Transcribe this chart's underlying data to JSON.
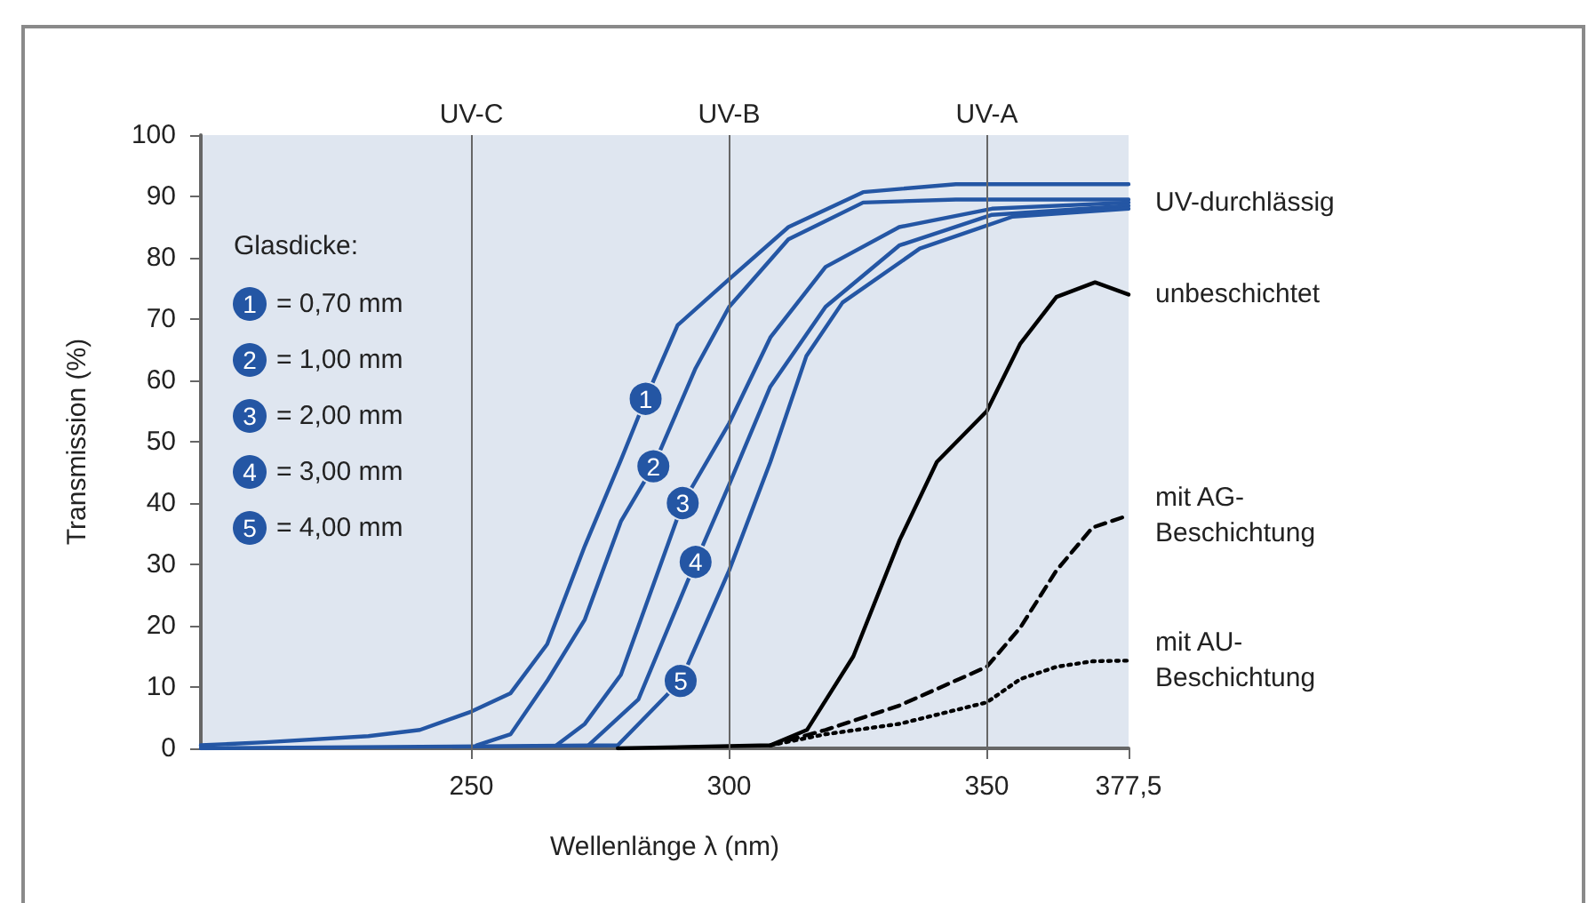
{
  "chart_data": {
    "type": "line",
    "xlabel": "Wellenlänge λ (nm)",
    "ylabel": "Transmission (%)",
    "legend_title": "Glasdicke:",
    "legend": "top left",
    "grid": false,
    "marker": "none",
    "xlim": [
      197.5,
      377.5
    ],
    "xticks": [
      250,
      300,
      350,
      {
        "value": 377.5,
        "label": "377,5"
      }
    ],
    "ylim": [
      0,
      100
    ],
    "yticks": [
      0,
      10,
      20,
      30,
      40,
      50,
      60,
      70,
      80,
      90,
      100
    ],
    "ref_lines": [
      {
        "axis": "x",
        "value": 250,
        "label": "UV-C",
        "color": "#666666"
      },
      {
        "axis": "x",
        "value": 300,
        "label": "UV-B",
        "color": "#666666"
      },
      {
        "axis": "x",
        "value": 350,
        "label": "UV-A",
        "color": "#666666"
      }
    ],
    "series": [
      {
        "name": "= 0,70 mm",
        "color": "#2456a4",
        "line_style": "solid",
        "x": [
          197.5,
          210,
          230,
          240,
          250,
          257.6,
          264.7,
          272,
          279,
          283.8,
          290,
          300,
          311.5,
          326,
          344,
          377.5
        ],
        "values": [
          0.5,
          1,
          2,
          3,
          6,
          9,
          17,
          33,
          47,
          57,
          69,
          76.5,
          85,
          90.7,
          92,
          92
        ]
      },
      {
        "name": "= 1,00 mm",
        "color": "#2456a4",
        "line_style": "solid",
        "x": [
          251,
          257.6,
          264.7,
          272,
          279,
          285.3,
          293.5,
          300,
          311.5,
          326,
          344,
          377.5
        ],
        "values": [
          0.5,
          2.3,
          11,
          21,
          37,
          46,
          62,
          72,
          83,
          89,
          89.5,
          89.5
        ]
      },
      {
        "name": "= 2,00 mm",
        "color": "#2456a4",
        "line_style": "solid",
        "x": [
          266.5,
          272,
          279,
          291,
          300,
          308,
          318.7,
          333,
          351,
          377.5
        ],
        "values": [
          0.5,
          4,
          12,
          40,
          53,
          67,
          78.5,
          85,
          88,
          89
        ]
      },
      {
        "name": "= 3,00 mm",
        "color": "#2456a4",
        "line_style": "solid",
        "x": [
          272.7,
          282.4,
          293.5,
          300,
          308,
          318.7,
          333,
          351,
          377.5
        ],
        "values": [
          0.5,
          8,
          30.4,
          43,
          59,
          72,
          82,
          87,
          88.5
        ]
      },
      {
        "name": "= 4,00 mm",
        "color": "#2456a4",
        "line_style": "solid",
        "x": [
          197.5,
          278.4,
          290.6,
          300,
          308,
          315,
          322,
          337,
          355,
          377.5
        ],
        "values": [
          0,
          0.5,
          11,
          29,
          46.7,
          64,
          72.7,
          81.5,
          86.7,
          88
        ]
      },
      {
        "name": "unbeschichtet",
        "color": "#000000",
        "line_style": "solid",
        "x": [
          278.4,
          308,
          315.1,
          324.1,
          333.1,
          340.3,
          350,
          356.5,
          363.5,
          371,
          377.5
        ],
        "values": [
          0,
          0.5,
          3,
          15,
          34,
          46.7,
          55,
          66,
          73.6,
          76,
          74
        ]
      },
      {
        "name": "mit AG-\nBeschichtung",
        "color": "#000000",
        "line_style": "dashed",
        "x": [
          308,
          318.7,
          333.1,
          350,
          356.5,
          363.5,
          370.5,
          377.5
        ],
        "values": [
          0.5,
          3,
          7,
          13.3,
          19.7,
          29,
          36,
          38
        ]
      },
      {
        "name": "mit AU-\nBeschichtung",
        "color": "#000000",
        "line_style": "dotted",
        "x": [
          308,
          318.7,
          333.1,
          350,
          356.5,
          363.5,
          370.5,
          377.5
        ],
        "values": [
          0.5,
          2.3,
          4,
          7.5,
          11.3,
          13.3,
          14.2,
          14.3
        ]
      }
    ],
    "annotations": [
      {
        "text": "1",
        "x": 283.8,
        "y": 57
      },
      {
        "text": "2",
        "x": 285.3,
        "y": 46
      },
      {
        "text": "3",
        "x": 291,
        "y": 40
      },
      {
        "text": "4",
        "x": 293.5,
        "y": 30.4
      },
      {
        "text": "5",
        "x": 290.6,
        "y": 11
      },
      {
        "text": "UV-durchlässig",
        "x": 377.5,
        "y": 89
      }
    ]
  }
}
